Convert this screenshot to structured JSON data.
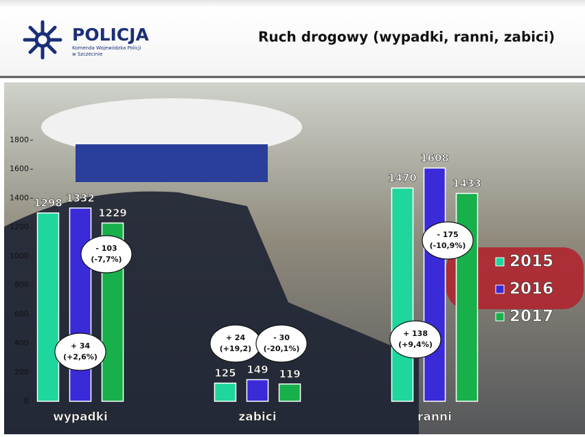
{
  "header": {
    "logo": "POLICJA",
    "logo_sub1": "Komenda Wojewódzka Policji",
    "logo_sub2": "w Szczecinie",
    "title": "Ruch drogowy (wypadki, ranni, zabici)"
  },
  "chart_data": {
    "type": "bar",
    "categories": [
      "wypadki",
      "zabici",
      "ranni"
    ],
    "series": [
      {
        "name": "2015",
        "color": "#1fd69c",
        "values": [
          1298,
          125,
          1470
        ]
      },
      {
        "name": "2016",
        "color": "#3a2ad8",
        "values": [
          1332,
          149,
          1608
        ]
      },
      {
        "name": "2017",
        "color": "#17b04a",
        "values": [
          1229,
          119,
          1433
        ]
      }
    ],
    "ylim": [
      0,
      1800
    ],
    "yticks": [
      0,
      200,
      400,
      600,
      800,
      1000,
      1200,
      1400,
      1600,
      1800
    ],
    "annotations": [
      [
        "- 103",
        "(-7,7%)"
      ],
      [
        "+ 34",
        "(+2,6%)"
      ],
      [
        "+ 24",
        "(+19,2)"
      ],
      [
        "- 30",
        "(-20,1%)"
      ],
      [
        "- 175",
        "(-10,9%)"
      ],
      [
        "+ 138",
        "(+9,4%)"
      ]
    ]
  }
}
